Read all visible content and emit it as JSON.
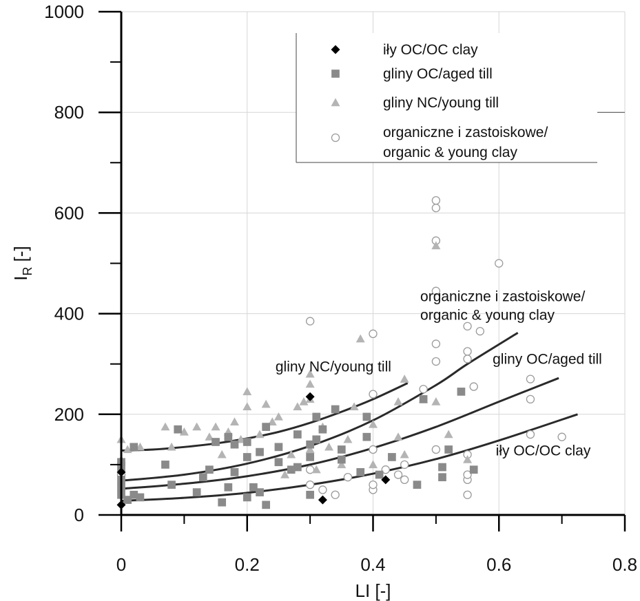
{
  "chart_data": {
    "type": "scatter",
    "xlabel": "LI [-]",
    "ylabel_main": "I",
    "ylabel_sub": "R",
    "ylabel_suffix": " [-]",
    "xlim": [
      0,
      0.8
    ],
    "ylim": [
      0,
      1000
    ],
    "x_ticks": [
      0,
      0.2,
      0.4,
      0.6,
      0.8
    ],
    "x_tick_labels": [
      "0",
      "0.2",
      "0.4",
      "0.6",
      "0.8"
    ],
    "y_ticks": [
      0,
      200,
      400,
      600,
      800,
      1000
    ],
    "y_tick_labels": [
      "0",
      "200",
      "400",
      "600",
      "800",
      "1000"
    ],
    "grid": true,
    "legend_position": "top-right",
    "series": [
      {
        "name": "iły OC/OC clay",
        "marker": "diamond",
        "color": "#000000",
        "points": [
          [
            0,
            20
          ],
          [
            0,
            85
          ],
          [
            0.3,
            235
          ],
          [
            0.32,
            30
          ],
          [
            0.42,
            70
          ]
        ]
      },
      {
        "name": "gliny OC/aged till",
        "marker": "square",
        "color": "#8a8a8a",
        "points": [
          [
            0,
            40
          ],
          [
            0,
            55
          ],
          [
            0,
            70
          ],
          [
            0,
            95
          ],
          [
            0,
            105
          ],
          [
            0.01,
            30
          ],
          [
            0.02,
            40
          ],
          [
            0.02,
            135
          ],
          [
            0.03,
            35
          ],
          [
            0.07,
            100
          ],
          [
            0.08,
            60
          ],
          [
            0.09,
            170
          ],
          [
            0.12,
            45
          ],
          [
            0.13,
            75
          ],
          [
            0.14,
            90
          ],
          [
            0.15,
            145
          ],
          [
            0.16,
            25
          ],
          [
            0.17,
            55
          ],
          [
            0.17,
            155
          ],
          [
            0.18,
            85
          ],
          [
            0.18,
            140
          ],
          [
            0.2,
            35
          ],
          [
            0.2,
            115
          ],
          [
            0.2,
            145
          ],
          [
            0.21,
            55
          ],
          [
            0.22,
            45
          ],
          [
            0.22,
            125
          ],
          [
            0.23,
            20
          ],
          [
            0.23,
            175
          ],
          [
            0.25,
            105
          ],
          [
            0.25,
            135
          ],
          [
            0.27,
            90
          ],
          [
            0.28,
            95
          ],
          [
            0.28,
            160
          ],
          [
            0.3,
            40
          ],
          [
            0.3,
            115
          ],
          [
            0.3,
            140
          ],
          [
            0.31,
            150
          ],
          [
            0.31,
            195
          ],
          [
            0.32,
            170
          ],
          [
            0.34,
            210
          ],
          [
            0.35,
            110
          ],
          [
            0.35,
            130
          ],
          [
            0.38,
            85
          ],
          [
            0.39,
            155
          ],
          [
            0.39,
            195
          ],
          [
            0.41,
            80
          ],
          [
            0.43,
            115
          ],
          [
            0.47,
            60
          ],
          [
            0.48,
            230
          ],
          [
            0.51,
            75
          ],
          [
            0.51,
            95
          ],
          [
            0.52,
            130
          ],
          [
            0.54,
            245
          ],
          [
            0.56,
            90
          ]
        ]
      },
      {
        "name": "gliny NC/young till",
        "marker": "triangle",
        "color": "#b4b4b4",
        "points": [
          [
            0,
            110
          ],
          [
            0,
            150
          ],
          [
            0.01,
            130
          ],
          [
            0.03,
            135
          ],
          [
            0.07,
            175
          ],
          [
            0.08,
            135
          ],
          [
            0.1,
            165
          ],
          [
            0.12,
            175
          ],
          [
            0.14,
            155
          ],
          [
            0.15,
            175
          ],
          [
            0.16,
            120
          ],
          [
            0.17,
            165
          ],
          [
            0.18,
            185
          ],
          [
            0.19,
            150
          ],
          [
            0.2,
            215
          ],
          [
            0.2,
            245
          ],
          [
            0.22,
            160
          ],
          [
            0.23,
            220
          ],
          [
            0.24,
            185
          ],
          [
            0.25,
            195
          ],
          [
            0.26,
            80
          ],
          [
            0.27,
            120
          ],
          [
            0.28,
            215
          ],
          [
            0.29,
            225
          ],
          [
            0.3,
            130
          ],
          [
            0.3,
            230
          ],
          [
            0.3,
            260
          ],
          [
            0.3,
            280
          ],
          [
            0.31,
            90
          ],
          [
            0.32,
            175
          ],
          [
            0.33,
            135
          ],
          [
            0.35,
            100
          ],
          [
            0.36,
            150
          ],
          [
            0.37,
            215
          ],
          [
            0.38,
            350
          ],
          [
            0.4,
            100
          ],
          [
            0.4,
            180
          ],
          [
            0.44,
            155
          ],
          [
            0.44,
            225
          ],
          [
            0.45,
            120
          ],
          [
            0.45,
            270
          ],
          [
            0.48,
            230
          ],
          [
            0.5,
            225
          ],
          [
            0.5,
            535
          ],
          [
            0.52,
            160
          ],
          [
            0.55,
            110
          ]
        ]
      },
      {
        "name": "organiczne i zastoiskowe/ organic & young clay",
        "marker": "circle",
        "color": "#9a9a9a",
        "points": [
          [
            0,
            80
          ],
          [
            0.3,
            385
          ],
          [
            0.3,
            90
          ],
          [
            0.3,
            60
          ],
          [
            0.32,
            50
          ],
          [
            0.34,
            40
          ],
          [
            0.36,
            75
          ],
          [
            0.4,
            50
          ],
          [
            0.4,
            60
          ],
          [
            0.4,
            130
          ],
          [
            0.4,
            240
          ],
          [
            0.4,
            360
          ],
          [
            0.42,
            90
          ],
          [
            0.44,
            80
          ],
          [
            0.45,
            70
          ],
          [
            0.45,
            100
          ],
          [
            0.48,
            250
          ],
          [
            0.5,
            130
          ],
          [
            0.5,
            305
          ],
          [
            0.5,
            340
          ],
          [
            0.5,
            445
          ],
          [
            0.5,
            545
          ],
          [
            0.5,
            610
          ],
          [
            0.5,
            625
          ],
          [
            0.55,
            40
          ],
          [
            0.55,
            70
          ],
          [
            0.55,
            80
          ],
          [
            0.55,
            120
          ],
          [
            0.55,
            310
          ],
          [
            0.55,
            325
          ],
          [
            0.55,
            375
          ],
          [
            0.56,
            255
          ],
          [
            0.57,
            365
          ],
          [
            0.6,
            500
          ],
          [
            0.65,
            230
          ],
          [
            0.65,
            270
          ],
          [
            0.65,
            160
          ],
          [
            0.7,
            155
          ]
        ]
      }
    ],
    "trend_curves": [
      {
        "label": "gliny NC/young till",
        "x_range": [
          0,
          0.455
        ],
        "points": [
          [
            0,
            128
          ],
          [
            0.05,
            130
          ],
          [
            0.1,
            135
          ],
          [
            0.15,
            142
          ],
          [
            0.2,
            152
          ],
          [
            0.25,
            165
          ],
          [
            0.3,
            183
          ],
          [
            0.35,
            205
          ],
          [
            0.4,
            230
          ],
          [
            0.455,
            262
          ]
        ]
      },
      {
        "label": "organiczne i zastoiskowe/ organic & young clay",
        "x_range": [
          0,
          0.63
        ],
        "points": [
          [
            0,
            68
          ],
          [
            0.1,
            80
          ],
          [
            0.2,
            102
          ],
          [
            0.3,
            137
          ],
          [
            0.4,
            188
          ],
          [
            0.5,
            258
          ],
          [
            0.55,
            300
          ],
          [
            0.63,
            362
          ]
        ]
      },
      {
        "label": "gliny OC/aged till",
        "x_range": [
          0,
          0.695
        ],
        "points": [
          [
            0,
            52
          ],
          [
            0.1,
            62
          ],
          [
            0.2,
            77
          ],
          [
            0.3,
            100
          ],
          [
            0.4,
            133
          ],
          [
            0.5,
            175
          ],
          [
            0.6,
            225
          ],
          [
            0.695,
            272
          ]
        ]
      },
      {
        "label": "iły OC/OC clay",
        "x_range": [
          0,
          0.725
        ],
        "points": [
          [
            0,
            28
          ],
          [
            0.1,
            34
          ],
          [
            0.2,
            44
          ],
          [
            0.3,
            60
          ],
          [
            0.4,
            82
          ],
          [
            0.5,
            111
          ],
          [
            0.6,
            148
          ],
          [
            0.725,
            200
          ]
        ]
      }
    ],
    "curve_labels": [
      {
        "text": "gliny NC/young till",
        "at": [
          0.245,
          285
        ]
      },
      {
        "lines": [
          "organiczne i zastoiskowe/",
          "organic & young clay"
        ],
        "at": [
          0.475,
          425
        ]
      },
      {
        "text": "gliny OC/aged till",
        "at": [
          0.59,
          300
        ]
      },
      {
        "text": "iły OC/OC clay",
        "at": [
          0.595,
          118
        ]
      }
    ]
  },
  "legend": {
    "items": [
      {
        "lines": [
          "iły OC/OC clay"
        ],
        "marker": "diamond",
        "color": "#000000"
      },
      {
        "lines": [
          "gliny OC/aged till"
        ],
        "marker": "square",
        "color": "#8a8a8a"
      },
      {
        "lines": [
          "gliny NC/young till"
        ],
        "marker": "triangle",
        "color": "#b4b4b4"
      },
      {
        "lines": [
          "organiczne i zastoiskowe/",
          "organic & young clay"
        ],
        "marker": "circle",
        "color": "#9a9a9a"
      }
    ]
  }
}
